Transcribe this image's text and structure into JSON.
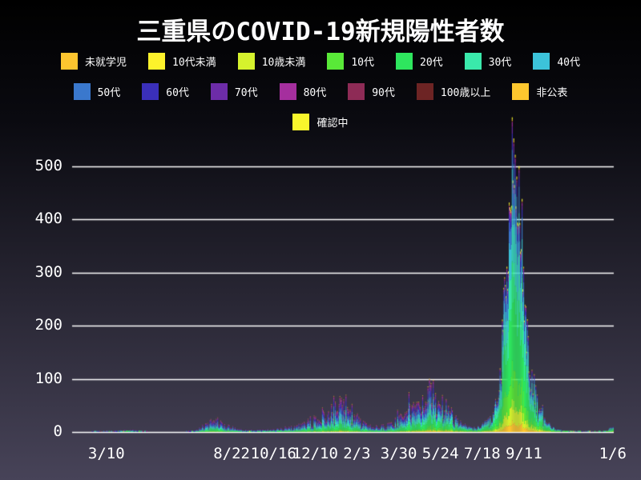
{
  "page": {
    "title": "三重県のCOVID-19新規陽性者数",
    "background_top": "#000000",
    "background_bottom": "#474358",
    "text_color": "#ffffff"
  },
  "legend": {
    "rows": [
      [
        {
          "label": "未就学児",
          "color": "#fdc52f"
        },
        {
          "label": "10代未満",
          "color": "#fdf22b"
        },
        {
          "label": "10歳未満",
          "color": "#d5f22d"
        },
        {
          "label": "10代",
          "color": "#59e938"
        },
        {
          "label": "20代",
          "color": "#2ee65e"
        },
        {
          "label": "30代",
          "color": "#3ae9ab"
        },
        {
          "label": "40代",
          "color": "#3cc3da"
        }
      ],
      [
        {
          "label": "50代",
          "color": "#3a78cd"
        },
        {
          "label": "60代",
          "color": "#3a2fba"
        },
        {
          "label": "70代",
          "color": "#6d2ca8"
        },
        {
          "label": "80代",
          "color": "#a52f9e"
        },
        {
          "label": "90代",
          "color": "#8e2b56"
        },
        {
          "label": "100歳以上",
          "color": "#6d2424"
        },
        {
          "label": "非公表",
          "color": "#fdc72e"
        }
      ],
      [
        {
          "label": "確認中",
          "color": "#f8f62c"
        }
      ]
    ]
  },
  "chart_data": {
    "type": "bar",
    "stacked": true,
    "title": "三重県のCOVID-19新規陽性者数",
    "xlabel": "",
    "ylabel": "",
    "grid": true,
    "legend_position": "top",
    "ylim": [
      0,
      526
    ],
    "y_ticks": [
      0,
      100,
      200,
      300,
      400,
      500
    ],
    "x_ticks": [
      {
        "label": "3/10",
        "day": 42
      },
      {
        "label": "8/22",
        "day": 207
      },
      {
        "label": "10/16",
        "day": 262
      },
      {
        "label": "12/10",
        "day": 317
      },
      {
        "label": "2/3",
        "day": 372
      },
      {
        "label": "3/30",
        "day": 427
      },
      {
        "label": "5/24",
        "day": 482
      },
      {
        "label": "7/18",
        "day": 537
      },
      {
        "label": "9/11",
        "day": 592
      },
      {
        "label": "1/6",
        "day": 709
      }
    ],
    "x_range_days": [
      0,
      709
    ],
    "peak_value": 508,
    "peak_day": 578,
    "envelope_daily_total": [
      [
        0,
        0
      ],
      [
        15,
        0
      ],
      [
        25,
        1
      ],
      [
        42,
        1
      ],
      [
        55,
        1
      ],
      [
        65,
        3
      ],
      [
        72,
        4
      ],
      [
        80,
        3
      ],
      [
        90,
        1
      ],
      [
        100,
        0
      ],
      [
        120,
        0
      ],
      [
        140,
        0
      ],
      [
        150,
        1
      ],
      [
        158,
        3
      ],
      [
        165,
        7
      ],
      [
        172,
        11
      ],
      [
        180,
        16
      ],
      [
        188,
        19
      ],
      [
        193,
        14
      ],
      [
        200,
        10
      ],
      [
        207,
        8
      ],
      [
        214,
        5
      ],
      [
        222,
        4
      ],
      [
        230,
        3
      ],
      [
        240,
        3
      ],
      [
        250,
        4
      ],
      [
        262,
        4
      ],
      [
        270,
        5
      ],
      [
        280,
        7
      ],
      [
        290,
        9
      ],
      [
        298,
        12
      ],
      [
        306,
        15
      ],
      [
        314,
        20
      ],
      [
        320,
        24
      ],
      [
        327,
        30
      ],
      [
        333,
        28
      ],
      [
        338,
        34
      ],
      [
        344,
        44
      ],
      [
        350,
        55
      ],
      [
        354,
        48
      ],
      [
        358,
        38
      ],
      [
        363,
        32
      ],
      [
        368,
        26
      ],
      [
        372,
        22
      ],
      [
        378,
        16
      ],
      [
        384,
        12
      ],
      [
        390,
        9
      ],
      [
        396,
        8
      ],
      [
        403,
        9
      ],
      [
        410,
        12
      ],
      [
        417,
        15
      ],
      [
        424,
        19
      ],
      [
        430,
        24
      ],
      [
        436,
        30
      ],
      [
        442,
        38
      ],
      [
        448,
        44
      ],
      [
        454,
        50
      ],
      [
        460,
        58
      ],
      [
        466,
        66
      ],
      [
        471,
        72
      ],
      [
        476,
        62
      ],
      [
        481,
        55
      ],
      [
        486,
        45
      ],
      [
        492,
        36
      ],
      [
        498,
        28
      ],
      [
        504,
        22
      ],
      [
        510,
        15
      ],
      [
        516,
        10
      ],
      [
        522,
        8
      ],
      [
        528,
        7
      ],
      [
        534,
        9
      ],
      [
        540,
        13
      ],
      [
        546,
        22
      ],
      [
        551,
        34
      ],
      [
        556,
        60
      ],
      [
        560,
        105
      ],
      [
        564,
        170
      ],
      [
        567,
        240
      ],
      [
        570,
        330
      ],
      [
        573,
        400
      ],
      [
        576,
        460
      ],
      [
        578,
        508
      ],
      [
        580,
        450
      ],
      [
        582,
        410
      ],
      [
        585,
        350
      ],
      [
        588,
        300
      ],
      [
        591,
        250
      ],
      [
        594,
        190
      ],
      [
        597,
        150
      ],
      [
        600,
        110
      ],
      [
        603,
        85
      ],
      [
        606,
        65
      ],
      [
        610,
        45
      ],
      [
        614,
        32
      ],
      [
        618,
        22
      ],
      [
        622,
        15
      ],
      [
        626,
        10
      ],
      [
        630,
        7
      ],
      [
        635,
        5
      ],
      [
        640,
        3
      ],
      [
        646,
        2
      ],
      [
        652,
        2
      ],
      [
        658,
        1
      ],
      [
        664,
        1
      ],
      [
        670,
        1
      ],
      [
        676,
        1
      ],
      [
        682,
        1
      ],
      [
        688,
        1
      ],
      [
        694,
        1
      ],
      [
        700,
        2
      ],
      [
        704,
        4
      ],
      [
        707,
        7
      ],
      [
        709,
        10
      ]
    ],
    "series": [
      {
        "name": "未就学児",
        "color": "#fdc52f",
        "share_early": 0.01,
        "share_late": 0.03
      },
      {
        "name": "10代未満",
        "color": "#fdf22b",
        "share_early": 0.02,
        "share_late": 0.0
      },
      {
        "name": "10歳未満",
        "color": "#d5f22d",
        "share_early": 0.0,
        "share_late": 0.07
      },
      {
        "name": "10代",
        "color": "#59e938",
        "share_early": 0.05,
        "share_late": 0.13
      },
      {
        "name": "20代",
        "color": "#2ee65e",
        "share_early": 0.2,
        "share_late": 0.28
      },
      {
        "name": "30代",
        "color": "#3ae9ab",
        "share_early": 0.13,
        "share_late": 0.17
      },
      {
        "name": "40代",
        "color": "#3cc3da",
        "share_early": 0.14,
        "share_late": 0.14
      },
      {
        "name": "50代",
        "color": "#3a78cd",
        "share_early": 0.15,
        "share_late": 0.09
      },
      {
        "name": "60代",
        "color": "#3a2fba",
        "share_early": 0.11,
        "share_late": 0.04
      },
      {
        "name": "70代",
        "color": "#6d2ca8",
        "share_early": 0.08,
        "share_late": 0.02
      },
      {
        "name": "80代",
        "color": "#a52f9e",
        "share_early": 0.06,
        "share_late": 0.012
      },
      {
        "name": "90代",
        "color": "#8e2b56",
        "share_early": 0.03,
        "share_late": 0.004
      },
      {
        "name": "100歳以上",
        "color": "#6d2424",
        "share_early": 0.005,
        "share_late": 0.001
      },
      {
        "name": "非公表",
        "color": "#fdc72e",
        "share_early": 0.01,
        "share_late": 0.005
      },
      {
        "name": "確認中",
        "color": "#f8f62c",
        "share_early": 0.005,
        "share_late": 0.008
      }
    ],
    "grid_color": "#ffffff"
  }
}
